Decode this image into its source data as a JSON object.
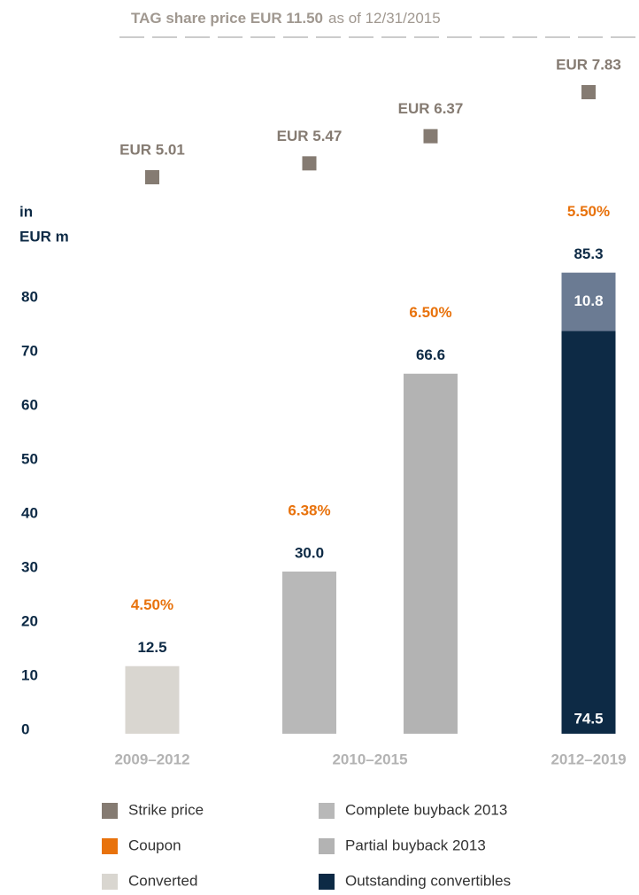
{
  "chart_data": {
    "type": "stacked_bar",
    "title_bold": "TAG share price EUR 11.50",
    "title_rest": "as of 12/31/2015",
    "y_label": [
      "in",
      "EUR m"
    ],
    "ylim": [
      0,
      90
    ],
    "yticks": [
      0,
      10,
      20,
      30,
      40,
      50,
      60,
      70,
      80
    ],
    "groups": [
      "2009–2012",
      "2010–2015",
      "2012–2019"
    ],
    "series": [
      {
        "name": "Strike price",
        "color": "#857b72"
      },
      {
        "name": "Coupon",
        "color": "#e8720c"
      },
      {
        "name": "Converted",
        "color": "#d9d6d0"
      },
      {
        "name": "Complete buyback 2013",
        "color": "#b8b8b8"
      },
      {
        "name": "Partial buyback 2013",
        "color": "#b3b3b3"
      },
      {
        "name": "Outstanding convertibles",
        "color": "#0d2a45"
      }
    ],
    "bars": [
      {
        "group": 0,
        "segments": [
          {
            "series": 2,
            "value": 12.5,
            "label": "12.5"
          }
        ],
        "coupon": 4.5,
        "coupon_label": "4.50%",
        "strike": 5.01,
        "strike_label": "EUR 5.01"
      },
      {
        "group": 1,
        "segments": [
          {
            "series": 3,
            "value": 30.0,
            "label": "30.0"
          }
        ],
        "coupon": 6.38,
        "coupon_label": "6.38%",
        "strike": 5.47,
        "strike_label": "EUR 5.47"
      },
      {
        "group": 1,
        "segments": [
          {
            "series": 4,
            "value": 66.6,
            "label": "66.6"
          }
        ],
        "coupon": 6.5,
        "coupon_label": "6.50%",
        "strike": 6.37,
        "strike_label": "EUR 6.37"
      },
      {
        "group": 2,
        "segments": [
          {
            "series": 5,
            "value": 74.5,
            "label": "74.5"
          },
          {
            "color": "#6b7b93",
            "value": 10.8,
            "label": "10.8"
          }
        ],
        "total": 85.3,
        "coupon": 5.5,
        "coupon_label": "5.50%",
        "strike": 7.83,
        "strike_label": "EUR 7.83"
      }
    ]
  }
}
